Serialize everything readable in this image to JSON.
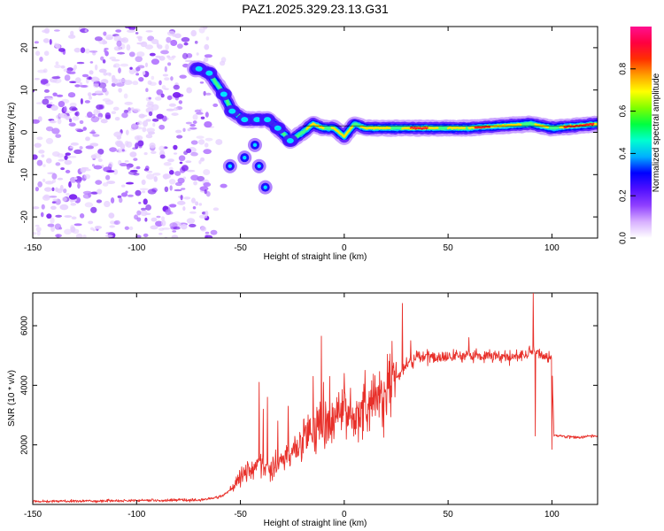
{
  "title": "PAZ1.2025.329.23.13.G31",
  "chart_data": [
    {
      "type": "heatmap",
      "title": "PAZ1.2025.329.23.13.G31",
      "xlabel": "Height of straight line (km)",
      "ylabel": "Frequency (Hz)",
      "xlim": [
        -150,
        122
      ],
      "ylim": [
        -25,
        25
      ],
      "xticks": [
        -150,
        -100,
        -50,
        0,
        50,
        100
      ],
      "xtick_labels": [
        "-150",
        "-100",
        "-50",
        "0",
        "50",
        "100"
      ],
      "yticks": [
        -20,
        -10,
        0,
        10,
        20
      ],
      "ytick_labels": [
        "-20",
        "-10",
        "0",
        "10",
        "20"
      ],
      "colorbar": {
        "label": "Normalized spectral amplitude",
        "range": [
          0,
          1
        ],
        "ticks": [
          0.0,
          0.2,
          0.4,
          0.6,
          0.8
        ],
        "tick_labels": [
          "0.0",
          "0.2",
          "0.4",
          "0.6",
          "0.8"
        ],
        "colors": [
          "#ffffff",
          "#d8b0ff",
          "#9040ff",
          "#5010ff",
          "#0000ff",
          "#00b0ff",
          "#00ffd0",
          "#00ff40",
          "#80ff00",
          "#ffff00",
          "#ffa000",
          "#ff3000",
          "#ff0040",
          "#ff1090"
        ]
      },
      "features": {
        "noise_region_x": [
          -150,
          -65
        ],
        "chirp_points": [
          [
            -70,
            15
          ],
          [
            -65,
            14
          ],
          [
            -58,
            9
          ],
          [
            -54,
            5
          ],
          [
            -48,
            3
          ],
          [
            -42,
            3
          ],
          [
            -37,
            3
          ],
          [
            -32,
            1
          ],
          [
            -26,
            -2
          ],
          [
            -20,
            0
          ],
          [
            -15,
            2
          ],
          [
            -10,
            1
          ],
          [
            -5,
            1
          ],
          [
            0,
            -1
          ],
          [
            5,
            2
          ],
          [
            10,
            1
          ],
          [
            20,
            1
          ],
          [
            30,
            1
          ],
          [
            40,
            1
          ],
          [
            60,
            1
          ],
          [
            90,
            2
          ],
          [
            100,
            1
          ],
          [
            122,
            2
          ]
        ],
        "branch_points": [
          [
            -55,
            -8
          ],
          [
            -48,
            -6
          ],
          [
            -43,
            -3
          ],
          [
            -41,
            -8
          ],
          [
            -38,
            -13
          ]
        ],
        "carrier_frequency_hz": 1.5
      }
    },
    {
      "type": "line",
      "xlabel": "Height of straight line (km)",
      "ylabel": "SNR (10 * v/v)",
      "xlim": [
        -150,
        122
      ],
      "ylim": [
        0,
        7100
      ],
      "xticks": [
        -150,
        -100,
        -50,
        0,
        50,
        100
      ],
      "xtick_labels": [
        "-150",
        "-100",
        "-50",
        "0",
        "50",
        "100"
      ],
      "yticks": [
        2000,
        4000,
        6000
      ],
      "ytick_labels": [
        "2000",
        "4000",
        "6000"
      ],
      "line_color": "#e8302a",
      "series": [
        {
          "name": "SNR",
          "envelope_x": [
            -150,
            -70,
            -60,
            -55,
            -50,
            -40,
            -35,
            -30,
            -25,
            -20,
            -15,
            -10,
            -5,
            0,
            5,
            10,
            15,
            20,
            25,
            30,
            35,
            40,
            50,
            60,
            70,
            80,
            85,
            90,
            93,
            95,
            100,
            101,
            105,
            110,
            122
          ],
          "envelope_y": [
            100,
            150,
            250,
            450,
            1000,
            1400,
            1200,
            1500,
            1900,
            2100,
            2300,
            2600,
            2800,
            3000,
            3000,
            3100,
            3400,
            3800,
            4200,
            4700,
            4900,
            4950,
            4950,
            5000,
            5000,
            4950,
            5000,
            5100,
            5200,
            5000,
            4850,
            2300,
            2300,
            2250,
            2300
          ],
          "spikes": [
            [
              -41,
              4100
            ],
            [
              -39,
              3200
            ],
            [
              -37,
              3600
            ],
            [
              -32,
              2800
            ],
            [
              -27,
              3300
            ],
            [
              -15,
              4300
            ],
            [
              -11,
              5650
            ],
            [
              -10,
              4100
            ],
            [
              -7,
              4300
            ],
            [
              0,
              4400
            ],
            [
              10,
              4500
            ],
            [
              22,
              5050
            ],
            [
              28,
              6750
            ],
            [
              32,
              5500
            ],
            [
              60,
              5600
            ],
            [
              91,
              7100
            ],
            [
              92,
              2300
            ],
            [
              100,
              1850
            ]
          ]
        }
      ]
    }
  ]
}
